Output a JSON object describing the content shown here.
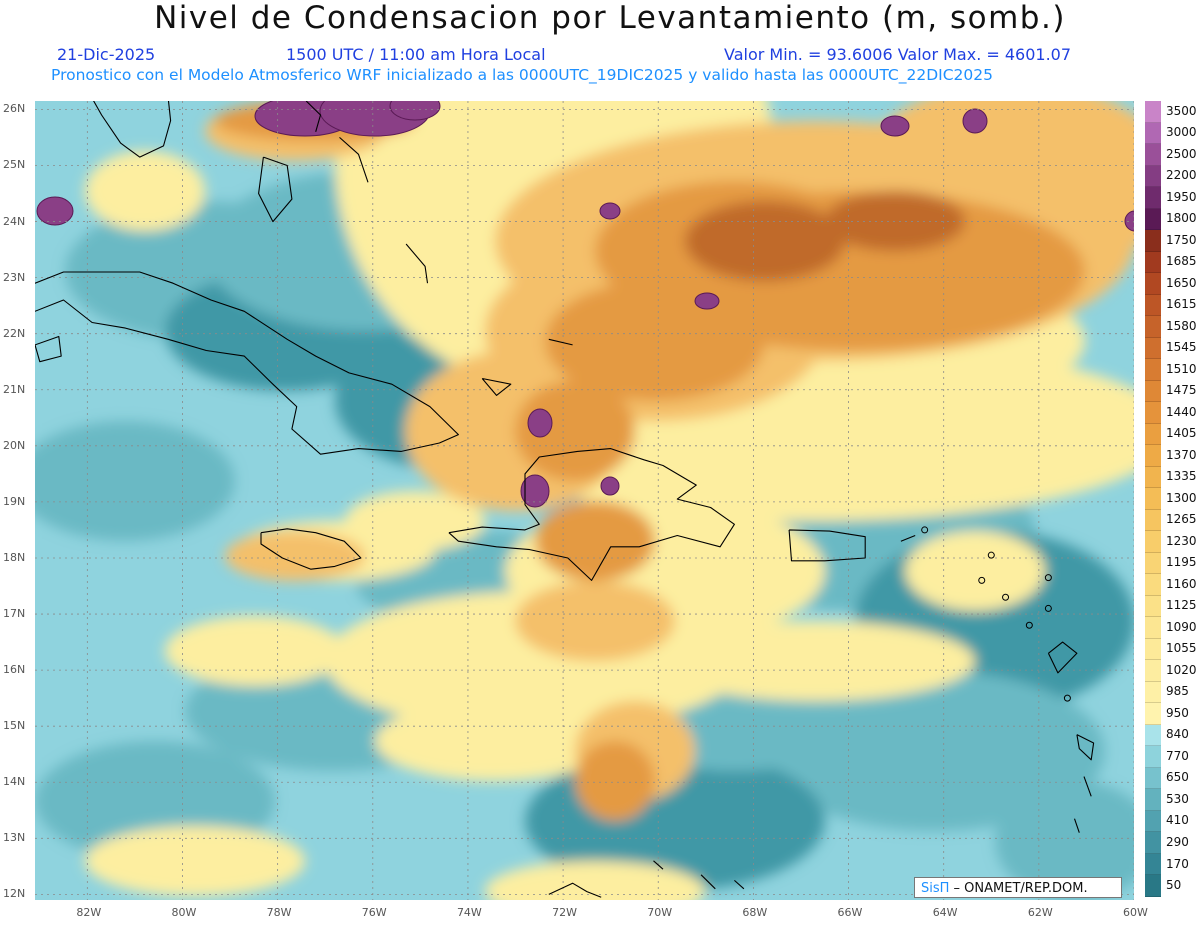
{
  "header": {
    "title": "Nivel de Condensacion por Levantamiento (m, somb.)",
    "date": "21-Dic-2025",
    "time": "1500 UTC / 11:00 am Hora Local",
    "min_max": "Valor Min. = 93.6006   Valor Max. = 4601.07",
    "forecast": "Pronostico con el Modelo Atmosferico WRF inicializado a las 0000UTC_19DIC2025 y valido hasta las  0000UTC_22DIC2025"
  },
  "map": {
    "lon_labels": [
      "82W",
      "80W",
      "78W",
      "76W",
      "74W",
      "72W",
      "70W",
      "68W",
      "66W",
      "64W",
      "62W",
      "60W"
    ],
    "lat_labels": [
      "26N",
      "25N",
      "24N",
      "23N",
      "22N",
      "21N",
      "20N",
      "19N",
      "18N",
      "17N",
      "16N",
      "15N",
      "14N",
      "13N",
      "12N"
    ],
    "field_colors": {
      "low": "#3f98a6",
      "mid_low": "#6ab9c4",
      "base": "#8fd3de",
      "neutral": "#fdeea0",
      "warm": "#f4c06a",
      "orange": "#e49a42",
      "dark_orange": "#c06b2a",
      "purple": "#8a3f86"
    },
    "coast_color": "#000000"
  },
  "colorbar": {
    "levels": [
      "3500",
      "3000",
      "2500",
      "2200",
      "1950",
      "1800",
      "1750",
      "1685",
      "1650",
      "1615",
      "1580",
      "1545",
      "1510",
      "1475",
      "1440",
      "1405",
      "1370",
      "1335",
      "1300",
      "1265",
      "1230",
      "1195",
      "1160",
      "1125",
      "1090",
      "1055",
      "1020",
      "985",
      "950",
      "840",
      "770",
      "650",
      "530",
      "410",
      "290",
      "170",
      "50"
    ],
    "colors": [
      "#c984c8",
      "#b068b3",
      "#9a5099",
      "#843d83",
      "#6f2b6d",
      "#5a1a55",
      "#8a2e1c",
      "#a13a1f",
      "#b14822",
      "#bd5626",
      "#c6632a",
      "#cf6f2e",
      "#d87c32",
      "#df8836",
      "#e5933b",
      "#ea9f40",
      "#eeaa46",
      "#f1b44e",
      "#f4bd56",
      "#f6c560",
      "#f8cd6a",
      "#f9d474",
      "#fadb7e",
      "#fbe188",
      "#fce692",
      "#fdea99",
      "#fdeda0",
      "#fef0a6",
      "#fff3ae",
      "#a9e3ea",
      "#8ed3dc",
      "#77c2cd",
      "#63b2be",
      "#52a2b0",
      "#4293a2",
      "#348595",
      "#297886"
    ]
  },
  "credit": {
    "logo": "SisΠ",
    "org": " – ONAMET/REP.DOM."
  }
}
